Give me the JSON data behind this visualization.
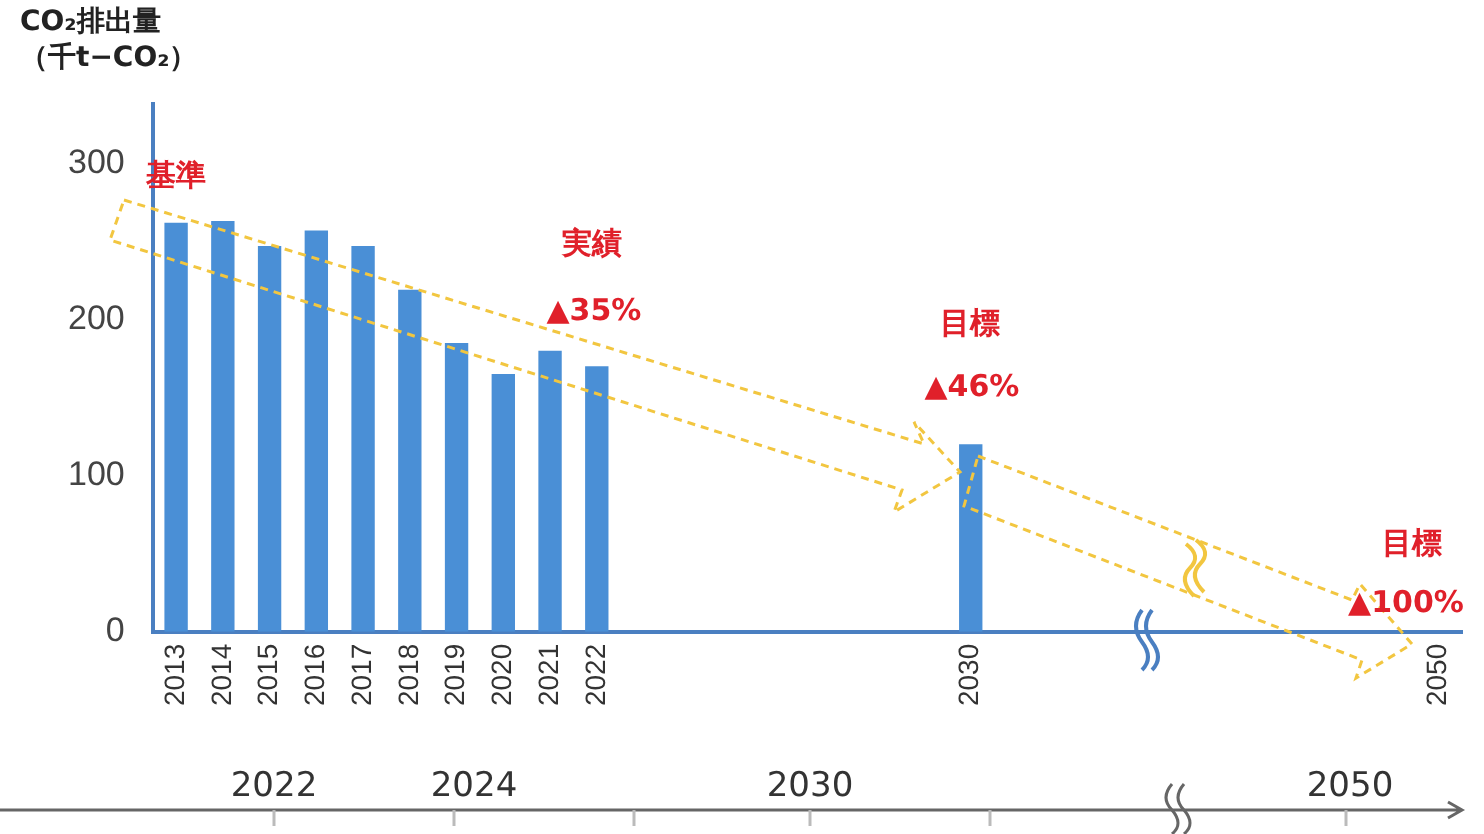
{
  "chart_data": {
    "type": "bar",
    "ylabel": "CO₂排出量（千t−CO₂）",
    "categories": [
      "2013",
      "2014",
      "2015",
      "2016",
      "2017",
      "2018",
      "2019",
      "2020",
      "2021",
      "2022",
      null,
      null,
      null,
      null,
      null,
      null,
      null,
      "2030",
      null,
      null,
      null,
      null,
      null,
      null,
      null,
      null,
      null,
      "2050"
    ],
    "values": [
      262,
      263,
      247,
      257,
      247,
      219,
      185,
      165,
      180,
      170,
      null,
      null,
      null,
      null,
      null,
      null,
      null,
      120,
      null,
      null,
      null,
      null,
      null,
      null,
      null,
      null,
      null,
      0
    ],
    "color": "#4a8fd6",
    "ylim": [
      0,
      338
    ],
    "yticks": [
      0,
      100,
      200,
      300
    ],
    "grid": false,
    "legend": false,
    "annotations": [
      "基準",
      "実績",
      "▲35%",
      "目標",
      "▲46%",
      "目標",
      "▲100%",
      "2022",
      "2024",
      "2030",
      "2050"
    ]
  }
}
